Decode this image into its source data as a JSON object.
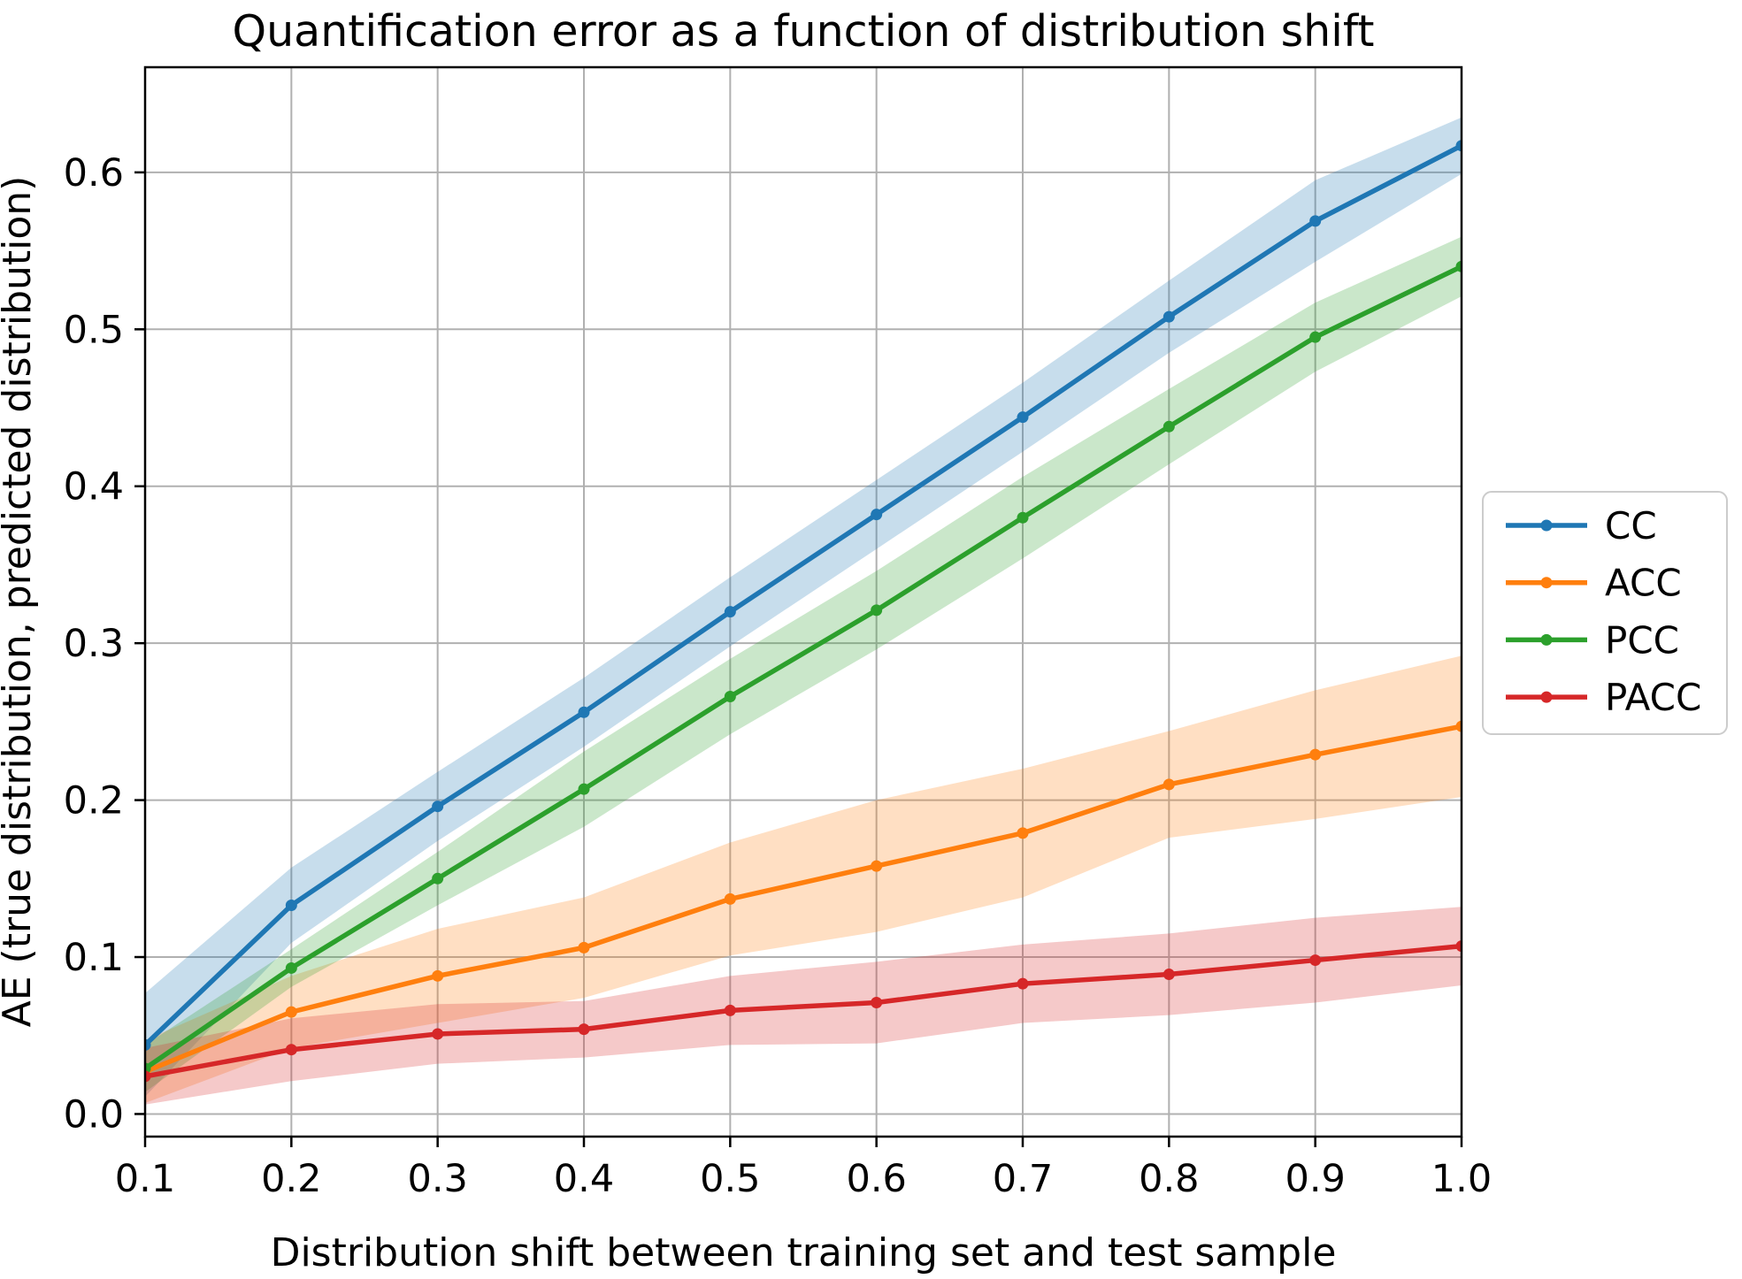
{
  "chart_data": {
    "type": "line",
    "title": "Quantification error as a function of distribution shift",
    "xlabel": "Distribution shift between training set and test sample",
    "ylabel": "AE (true distribution, predicted distribution)",
    "x": [
      0.1,
      0.2,
      0.3,
      0.4,
      0.5,
      0.6,
      0.7,
      0.8,
      0.9,
      1.0
    ],
    "xlim": [
      0.1,
      1.0
    ],
    "ylim": [
      -0.0144,
      0.667
    ],
    "xtick_labels": [
      "0.1",
      "0.2",
      "0.3",
      "0.4",
      "0.5",
      "0.6",
      "0.7",
      "0.8",
      "0.9",
      "1.0"
    ],
    "ytick_labels": [
      "0.0",
      "0.1",
      "0.2",
      "0.3",
      "0.4",
      "0.5",
      "0.6"
    ],
    "yticks": [
      0.0,
      0.1,
      0.2,
      0.3,
      0.4,
      0.5,
      0.6
    ],
    "grid": true,
    "grid_color": "#b0b0b0",
    "background": "#ffffff",
    "legend_position": "outside-right",
    "band_opacity": 0.25,
    "series": [
      {
        "name": "CC",
        "color": "#1f77b4",
        "values": [
          0.044,
          0.133,
          0.196,
          0.256,
          0.32,
          0.382,
          0.444,
          0.508,
          0.569,
          0.617
        ],
        "band_halfwidth": [
          0.033,
          0.024,
          0.022,
          0.022,
          0.022,
          0.022,
          0.022,
          0.023,
          0.026,
          0.018
        ]
      },
      {
        "name": "ACC",
        "color": "#ff7f0e",
        "values": [
          0.027,
          0.065,
          0.088,
          0.106,
          0.137,
          0.158,
          0.179,
          0.21,
          0.229,
          0.247
        ],
        "band_halfwidth": [
          0.02,
          0.023,
          0.03,
          0.032,
          0.036,
          0.042,
          0.041,
          0.034,
          0.041,
          0.045
        ]
      },
      {
        "name": "PCC",
        "color": "#2ca02c",
        "values": [
          0.029,
          0.093,
          0.15,
          0.207,
          0.266,
          0.321,
          0.38,
          0.438,
          0.495,
          0.54
        ],
        "band_halfwidth": [
          0.015,
          0.012,
          0.017,
          0.024,
          0.024,
          0.025,
          0.026,
          0.024,
          0.022,
          0.019
        ]
      },
      {
        "name": "PACC",
        "color": "#d62728",
        "values": [
          0.024,
          0.041,
          0.051,
          0.054,
          0.066,
          0.071,
          0.083,
          0.089,
          0.098,
          0.107
        ],
        "band_halfwidth": [
          0.018,
          0.02,
          0.019,
          0.018,
          0.022,
          0.026,
          0.025,
          0.026,
          0.027,
          0.025
        ]
      }
    ]
  }
}
